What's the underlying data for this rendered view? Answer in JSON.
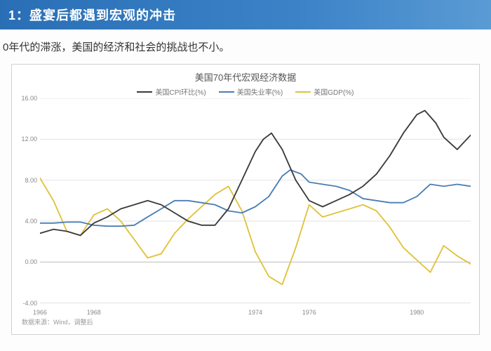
{
  "banner_title": "1：盛宴后都遇到宏观的冲击",
  "subtitle": "0年代的滞涨，美国的经济和社会的挑战也不小。",
  "chart": {
    "type": "line",
    "title": "美国70年代宏观经济数据",
    "title_fontsize": 13,
    "legend": [
      {
        "label": "美国CPI环比(%)",
        "color": "#3a3a3a"
      },
      {
        "label": "美国失业率(%)",
        "color": "#4a7db5"
      },
      {
        "label": "美国GDP(%)",
        "color": "#e0c23a"
      }
    ],
    "x": {
      "min": 1966,
      "max": 1982,
      "ticks": [
        1966,
        1968,
        1970,
        1972,
        1974,
        1976,
        1978,
        1980
      ],
      "tick_labels": [
        "1966",
        "1968",
        "",
        "",
        "1974",
        "1976",
        "",
        "1980"
      ]
    },
    "y": {
      "min": -4,
      "max": 16,
      "ticks": [
        -4,
        0,
        4,
        8,
        12,
        16
      ],
      "tick_labels": [
        "-4.00",
        "0.00",
        "4.00",
        "8.00",
        "12.00",
        "16.00"
      ]
    },
    "grid_color": "#e4e4e4",
    "background_color": "#ffffff",
    "line_width": 1.8,
    "series": {
      "cpi": {
        "color": "#3a3a3a",
        "points": [
          [
            1966.0,
            2.8
          ],
          [
            1966.5,
            3.2
          ],
          [
            1967.0,
            3.0
          ],
          [
            1967.5,
            2.6
          ],
          [
            1968.0,
            3.8
          ],
          [
            1968.5,
            4.4
          ],
          [
            1969.0,
            5.2
          ],
          [
            1969.5,
            5.6
          ],
          [
            1970.0,
            6.0
          ],
          [
            1970.5,
            5.6
          ],
          [
            1971.0,
            4.8
          ],
          [
            1971.5,
            4.0
          ],
          [
            1972.0,
            3.6
          ],
          [
            1972.5,
            3.6
          ],
          [
            1973.0,
            5.2
          ],
          [
            1973.5,
            8.0
          ],
          [
            1974.0,
            10.8
          ],
          [
            1974.3,
            12.0
          ],
          [
            1974.6,
            12.6
          ],
          [
            1975.0,
            11.0
          ],
          [
            1975.5,
            8.0
          ],
          [
            1976.0,
            6.0
          ],
          [
            1976.5,
            5.4
          ],
          [
            1977.0,
            6.0
          ],
          [
            1977.5,
            6.6
          ],
          [
            1978.0,
            7.4
          ],
          [
            1978.5,
            8.6
          ],
          [
            1979.0,
            10.4
          ],
          [
            1979.5,
            12.6
          ],
          [
            1980.0,
            14.4
          ],
          [
            1980.3,
            14.8
          ],
          [
            1980.7,
            13.6
          ],
          [
            1981.0,
            12.2
          ],
          [
            1981.5,
            11.0
          ],
          [
            1982.0,
            12.4
          ]
        ]
      },
      "unemp": {
        "color": "#4a7db5",
        "points": [
          [
            1966.0,
            3.8
          ],
          [
            1966.5,
            3.8
          ],
          [
            1967.0,
            3.9
          ],
          [
            1967.5,
            3.9
          ],
          [
            1968.0,
            3.6
          ],
          [
            1968.5,
            3.5
          ],
          [
            1969.0,
            3.5
          ],
          [
            1969.5,
            3.6
          ],
          [
            1970.0,
            4.4
          ],
          [
            1970.5,
            5.2
          ],
          [
            1971.0,
            6.0
          ],
          [
            1971.5,
            6.0
          ],
          [
            1972.0,
            5.8
          ],
          [
            1972.5,
            5.6
          ],
          [
            1973.0,
            5.0
          ],
          [
            1973.5,
            4.8
          ],
          [
            1974.0,
            5.4
          ],
          [
            1974.5,
            6.4
          ],
          [
            1975.0,
            8.4
          ],
          [
            1975.3,
            9.0
          ],
          [
            1975.7,
            8.6
          ],
          [
            1976.0,
            7.8
          ],
          [
            1976.5,
            7.6
          ],
          [
            1977.0,
            7.4
          ],
          [
            1977.5,
            7.0
          ],
          [
            1978.0,
            6.2
          ],
          [
            1978.5,
            6.0
          ],
          [
            1979.0,
            5.8
          ],
          [
            1979.5,
            5.8
          ],
          [
            1980.0,
            6.4
          ],
          [
            1980.5,
            7.6
          ],
          [
            1981.0,
            7.4
          ],
          [
            1981.5,
            7.6
          ],
          [
            1982.0,
            7.4
          ]
        ]
      },
      "gdp": {
        "color": "#e0c23a",
        "points": [
          [
            1966.0,
            8.2
          ],
          [
            1966.5,
            6.0
          ],
          [
            1967.0,
            3.0
          ],
          [
            1967.5,
            2.6
          ],
          [
            1968.0,
            4.6
          ],
          [
            1968.5,
            5.2
          ],
          [
            1969.0,
            4.0
          ],
          [
            1969.5,
            2.2
          ],
          [
            1970.0,
            0.4
          ],
          [
            1970.5,
            0.8
          ],
          [
            1971.0,
            2.8
          ],
          [
            1971.5,
            4.2
          ],
          [
            1972.0,
            5.4
          ],
          [
            1972.5,
            6.6
          ],
          [
            1973.0,
            7.4
          ],
          [
            1973.5,
            5.0
          ],
          [
            1974.0,
            1.0
          ],
          [
            1974.5,
            -1.4
          ],
          [
            1975.0,
            -2.2
          ],
          [
            1975.5,
            1.4
          ],
          [
            1976.0,
            5.6
          ],
          [
            1976.5,
            4.4
          ],
          [
            1977.0,
            4.8
          ],
          [
            1977.5,
            5.2
          ],
          [
            1978.0,
            5.6
          ],
          [
            1978.5,
            5.0
          ],
          [
            1979.0,
            3.4
          ],
          [
            1979.5,
            1.4
          ],
          [
            1980.0,
            0.2
          ],
          [
            1980.5,
            -1.0
          ],
          [
            1981.0,
            1.6
          ],
          [
            1981.5,
            0.6
          ],
          [
            1982.0,
            -0.2
          ]
        ]
      }
    },
    "source": "数据来源：Wind，调整后"
  },
  "colors": {
    "banner_bg": "#3b82c7",
    "banner_text": "#ffffff",
    "body_text": "#333333"
  }
}
